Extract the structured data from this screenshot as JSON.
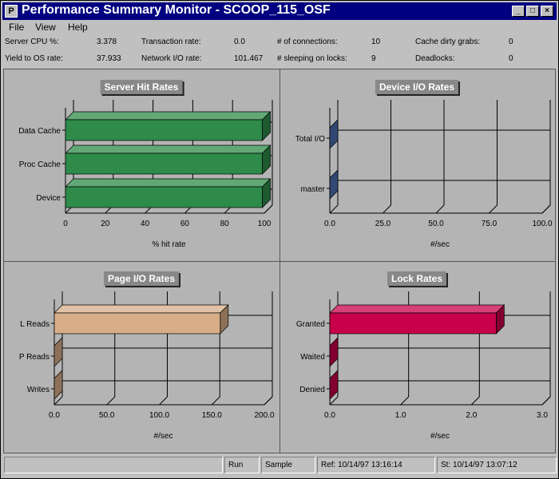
{
  "window": {
    "title": "Performance Summary Monitor - SCOOP_115_OSF",
    "app_icon_letter": "P",
    "buttons": {
      "minimize": "_",
      "maximize": "□",
      "close": "×"
    }
  },
  "menu": [
    "File",
    "View",
    "Help"
  ],
  "stats": [
    {
      "label": "Server CPU %:",
      "value": "3.378"
    },
    {
      "label": "Transaction rate:",
      "value": "0.0"
    },
    {
      "label": "# of connections:",
      "value": "10"
    },
    {
      "label": "Cache dirty grabs:",
      "value": "0"
    },
    {
      "label": "Yield to OS rate:",
      "value": "37.933"
    },
    {
      "label": "Network I/O rate:",
      "value": "101.467"
    },
    {
      "label": "# sleeping on locks:",
      "value": "9"
    },
    {
      "label": "Deadlocks:",
      "value": "0"
    }
  ],
  "panels": [
    {
      "title": "Server Hit Rates",
      "xlabel": "% hit rate",
      "ticks": [
        "0",
        "20",
        "40",
        "60",
        "80",
        "100"
      ],
      "xmax": 100,
      "categories": [
        "Data Cache",
        "Proc Cache",
        "Device"
      ],
      "values": [
        99,
        99,
        99
      ],
      "color": "#2e8b4a"
    },
    {
      "title": "Device I/O Rates",
      "xlabel": "#/sec",
      "ticks": [
        "0.0",
        "25.0",
        "50.0",
        "75.0",
        "100.0"
      ],
      "xmax": 100,
      "categories": [
        "Total I/O",
        "master"
      ],
      "values": [
        0,
        0
      ],
      "color": "#4a6fb0"
    },
    {
      "title": "Page I/O Rates",
      "xlabel": "#/sec",
      "ticks": [
        "0.0",
        "50.0",
        "100.0",
        "150.0",
        "200.0"
      ],
      "xmax": 200,
      "categories": [
        "L Reads",
        "P Reads",
        "Writes"
      ],
      "values": [
        158,
        0,
        0
      ],
      "color": "#d8ae88"
    },
    {
      "title": "Lock Rates",
      "xlabel": "#/sec",
      "ticks": [
        "0.0",
        "1.0",
        "2.0",
        "3.0"
      ],
      "xmax": 3,
      "categories": [
        "Granted",
        "Waited",
        "Denied"
      ],
      "values": [
        2.35,
        0,
        0
      ],
      "color": "#c8004a"
    }
  ],
  "statusbar": {
    "state": "Run",
    "mode": "Sample",
    "ref": "Ref: 10/14/97 13:16:14",
    "start": "St: 10/14/97 13:07:12"
  }
}
